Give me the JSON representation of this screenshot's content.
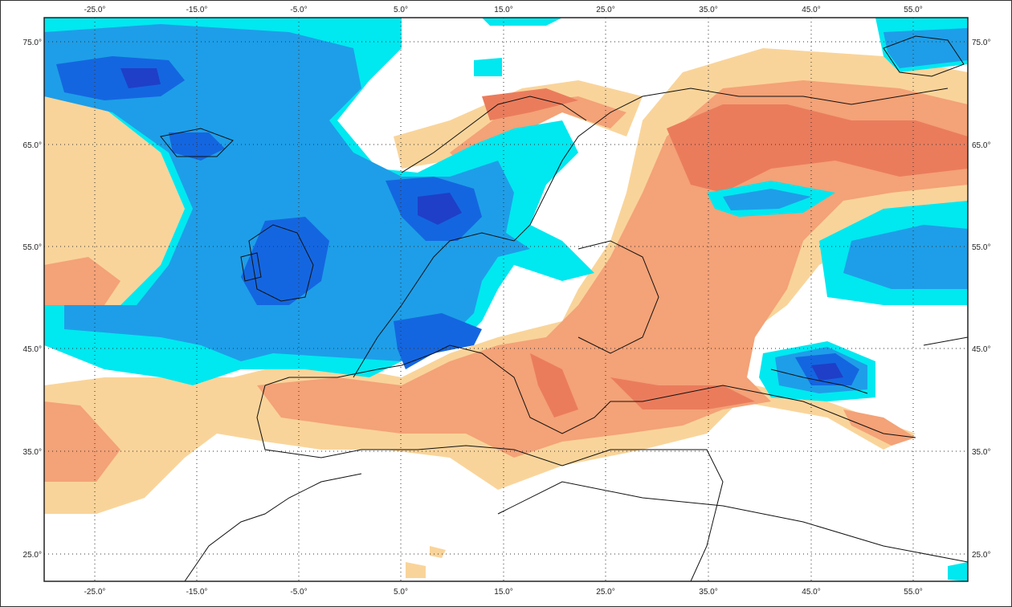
{
  "map": {
    "longitude_labels": [
      "-25.0°",
      "-15.0°",
      "-5.0°",
      "5.0°",
      "15.0°",
      "25.0°",
      "35.0°",
      "45.0°",
      "55.0°"
    ],
    "latitude_labels": [
      "75.0°",
      "65.0°",
      "55.0°",
      "45.0°",
      "35.0°",
      "25.0°"
    ],
    "gridlines": "dotted",
    "colors": {
      "anomaly_negative_light": "#00e8f0",
      "anomaly_negative_mid": "#1e9ee8",
      "anomaly_negative_strong": "#1466e0",
      "anomaly_negative_extreme": "#1f3fc8",
      "anomaly_positive_light": "#f9d49a",
      "anomaly_positive_mid": "#f4a277",
      "anomaly_positive_strong": "#ea7c5c",
      "anomaly_positive_extreme": "#d9523e",
      "coastline": "#111111",
      "background": "#ffffff"
    }
  }
}
